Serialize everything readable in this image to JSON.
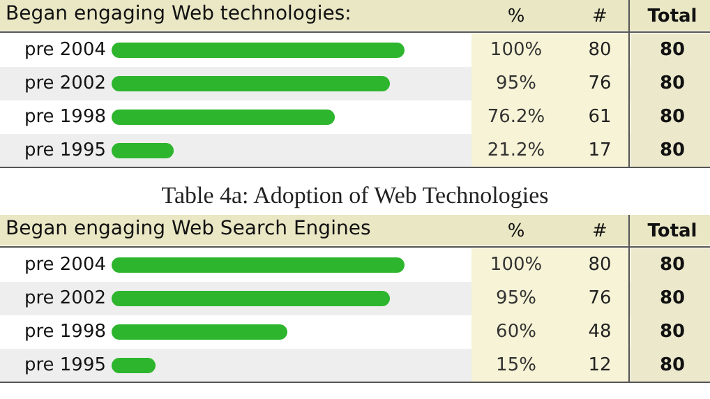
{
  "chart_data": [
    {
      "type": "bar",
      "orientation": "horizontal",
      "title": "Began engaging Web technologies:",
      "categories": [
        "pre 2004",
        "pre 2002",
        "pre 1998",
        "pre 1995"
      ],
      "values": [
        100,
        95,
        76.2,
        21.2
      ],
      "value_labels": [
        "100%",
        "95%",
        "76.2%",
        "21.2%"
      ],
      "color": "#2db52d",
      "annotations": [
        "%",
        "#",
        "Total",
        "80",
        "76",
        "61",
        "17",
        "80",
        "80",
        "80",
        "80",
        "Table 4a: Adoption of Web Technologies"
      ]
    },
    {
      "type": "bar",
      "orientation": "horizontal",
      "title": "Began engaging Web Search Engines",
      "categories": [
        "pre 2004",
        "pre 2002",
        "pre 1998",
        "pre 1995"
      ],
      "values": [
        100,
        95,
        60,
        15
      ],
      "value_labels": [
        "100%",
        "95%",
        "60%",
        "15%"
      ],
      "color": "#2db52d",
      "annotations": [
        "%",
        "#",
        "Total",
        "80",
        "76",
        "48",
        "12",
        "80",
        "80",
        "80",
        "80"
      ]
    }
  ]
}
